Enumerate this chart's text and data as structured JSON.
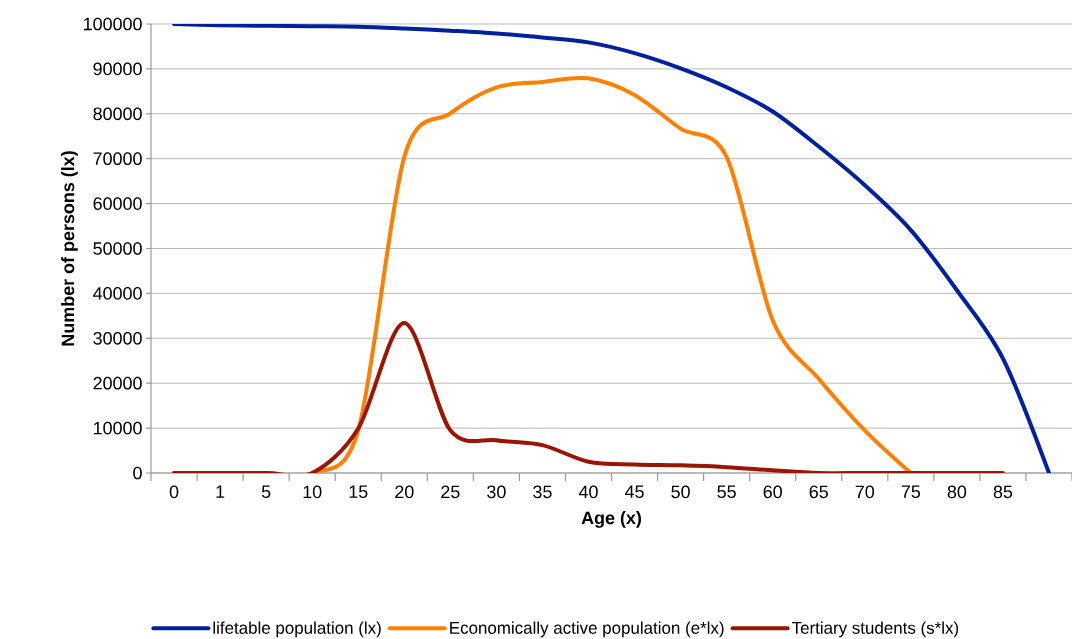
{
  "chart_data": {
    "type": "line",
    "xlabel": "Age (x)",
    "ylabel": "Number of persons (lx)",
    "categories": [
      "0",
      "1",
      "5",
      "10",
      "15",
      "20",
      "25",
      "30",
      "35",
      "40",
      "45",
      "50",
      "55",
      "60",
      "65",
      "70",
      "75",
      "80",
      "85",
      null
    ],
    "series": [
      {
        "name": "lifetable population (lx)",
        "color": "#00209f",
        "values": [
          100000,
          99700,
          99600,
          99500,
          99400,
          99000,
          98500,
          97900,
          97000,
          95900,
          93500,
          90100,
          85900,
          80500,
          72700,
          64100,
          54100,
          40700,
          25500,
          0
        ]
      },
      {
        "name": "Economically active population (e*lx)",
        "color": "#ff7f00",
        "values": [
          0,
          0,
          0,
          0,
          9500,
          70400,
          80100,
          85900,
          87100,
          87900,
          84200,
          76700,
          70400,
          34000,
          21000,
          9500,
          0,
          null,
          null,
          null
        ]
      },
      {
        "name": "Tertiary students (s*lx)",
        "color": "#9b1500",
        "values": [
          0,
          0,
          0,
          0,
          9900,
          33400,
          9500,
          7300,
          6200,
          2500,
          1900,
          1700,
          1300,
          600,
          0,
          0,
          0,
          0,
          0,
          null
        ]
      }
    ],
    "ylim": [
      0,
      100000
    ],
    "yticks": [
      0,
      10000,
      20000,
      30000,
      40000,
      50000,
      60000,
      70000,
      80000,
      90000,
      100000
    ],
    "grid": "y",
    "legend": "bottom",
    "line_style": "solid"
  }
}
